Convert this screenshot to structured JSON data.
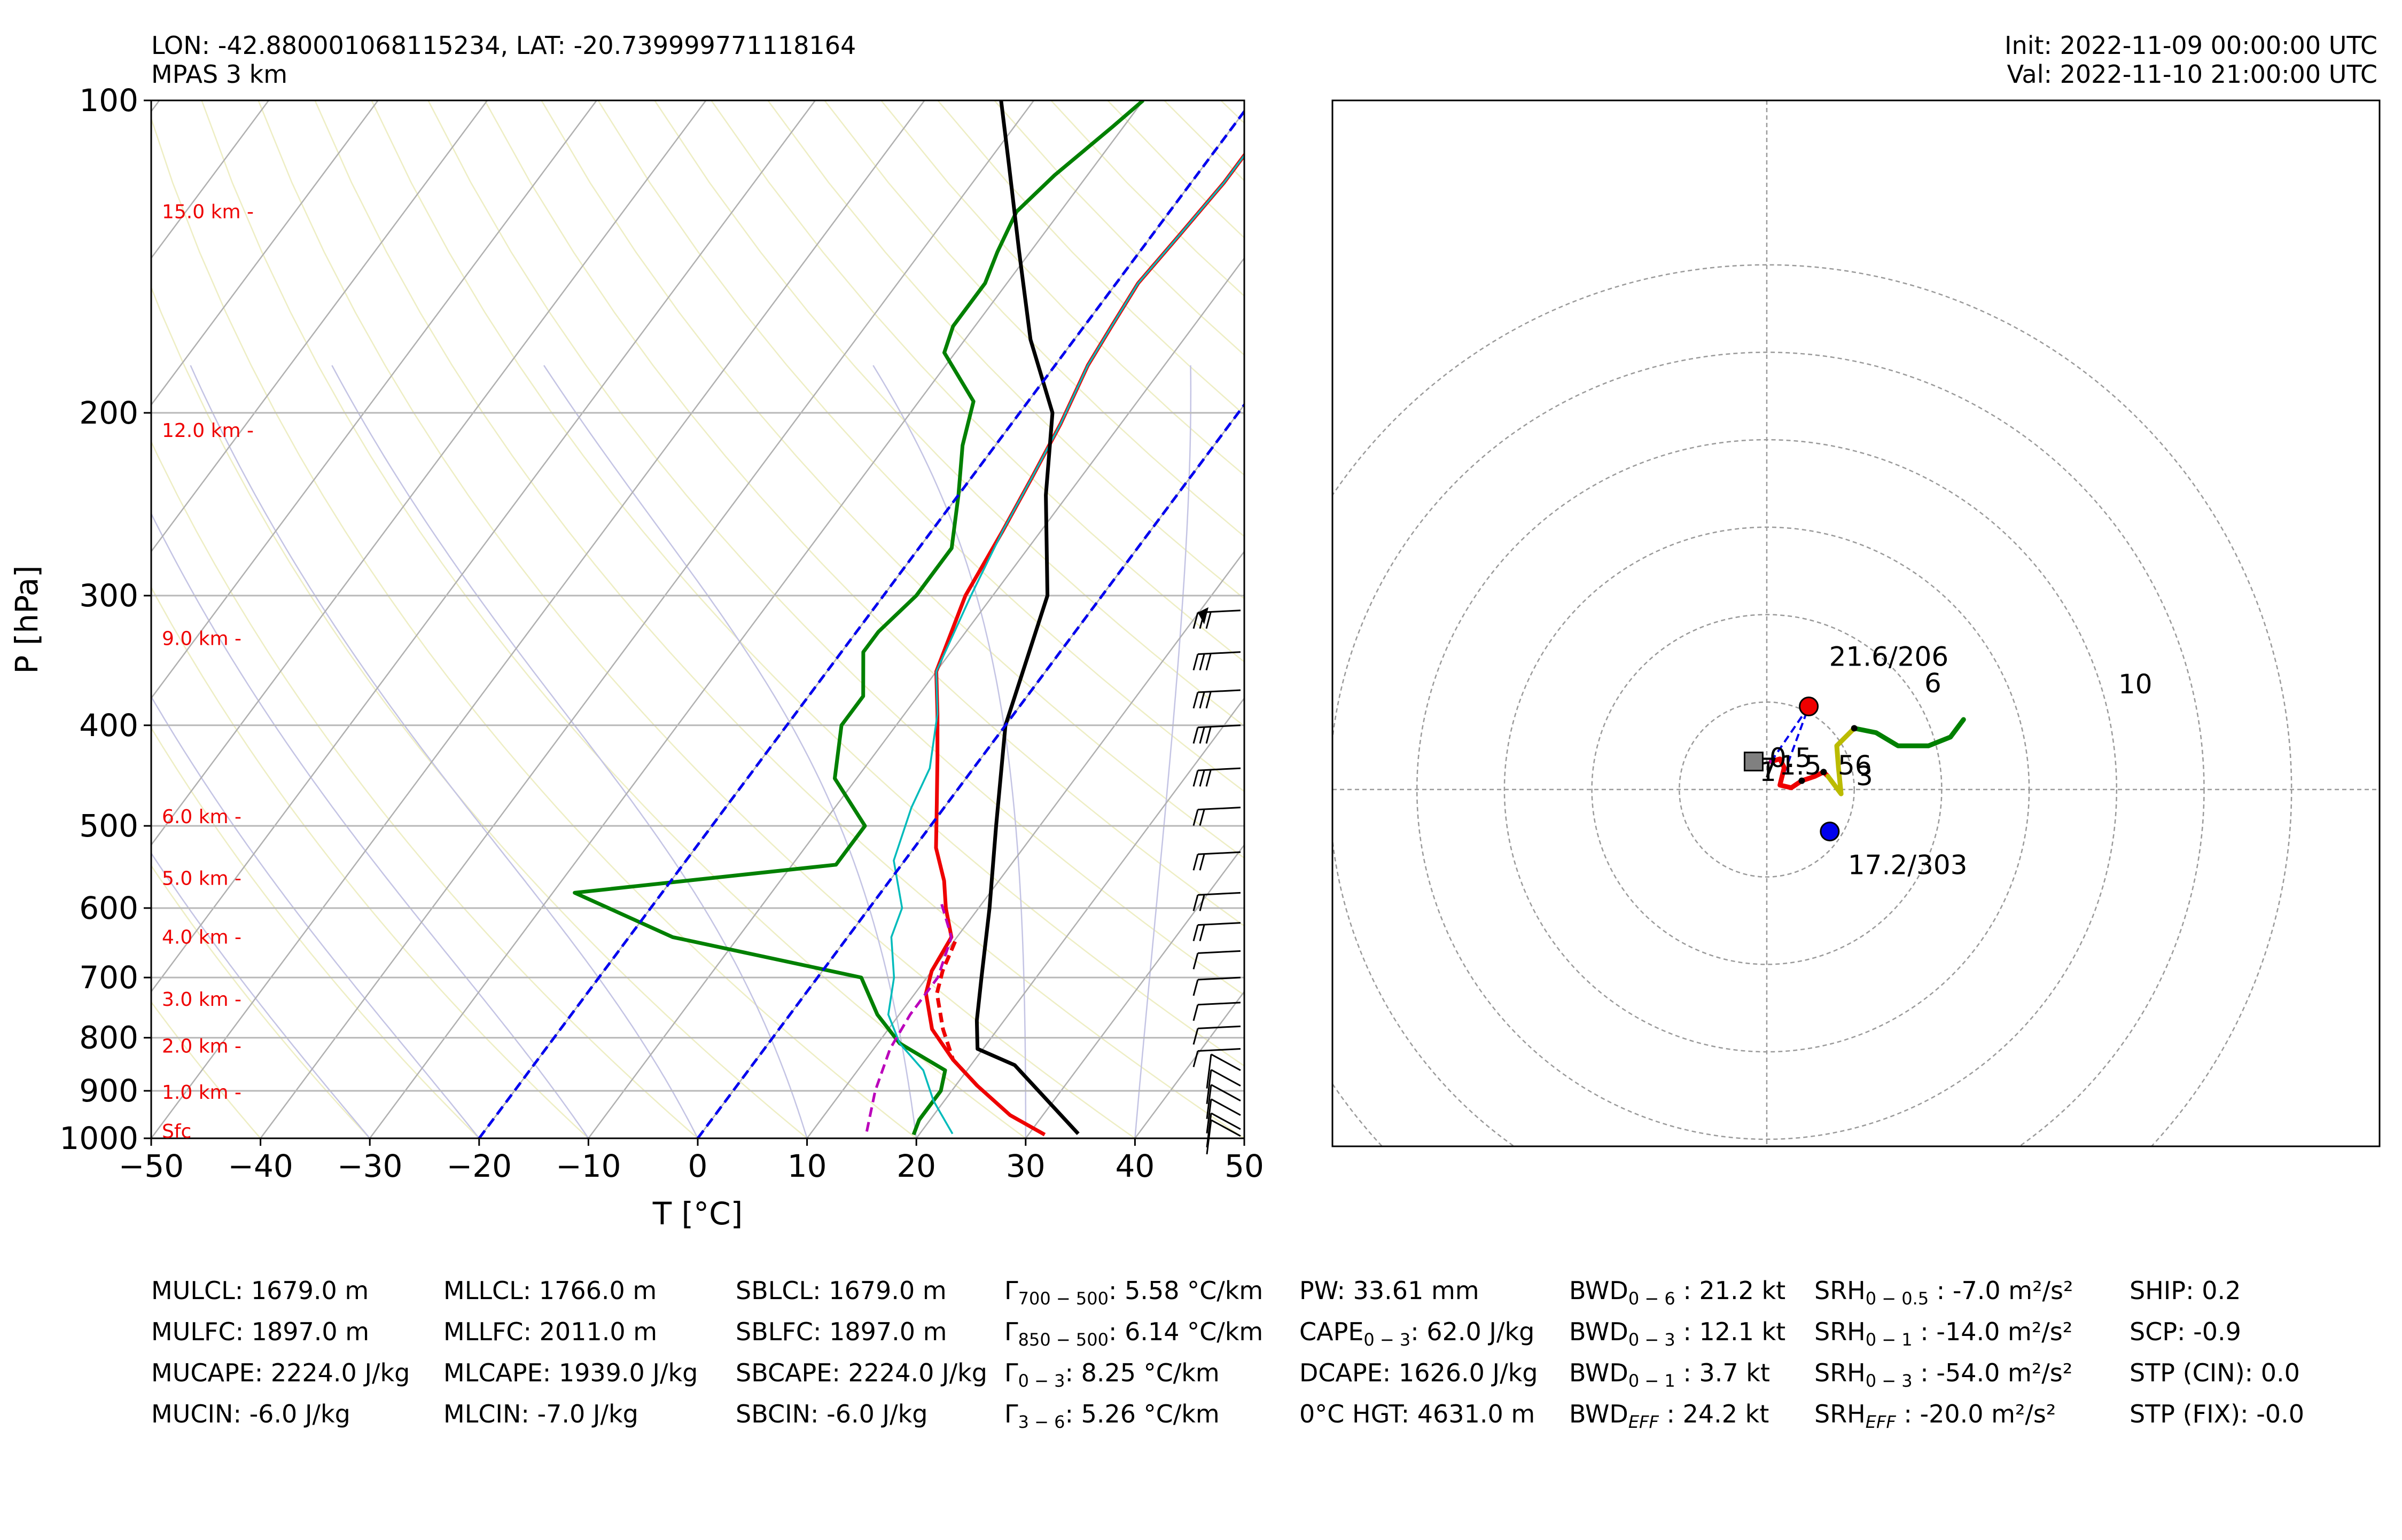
{
  "header": {
    "line1": "LON: -42.880001068115234, LAT: -20.739999771118164",
    "line2": "MPAS 3 km",
    "init": "Init: 2022-11-09 00:00:00 UTC",
    "valid": "Val: 2022-11-10 21:00:00 UTC"
  },
  "colors": {
    "temperature": "#ee0000",
    "dewpoint": "#008000",
    "parcel": "#000000",
    "virtual_temperature": "#00bbbb",
    "wetbulb": "#bb00bb",
    "isotherm_zero": "#0000ee",
    "height_labels": "#ee0000",
    "hodo_0_3km": "#ee0000",
    "hodo_3_6km": "#bbbb00",
    "hodo_6_10km": "#008000"
  },
  "chart_data": [
    {
      "type": "line",
      "subtype": "skew-T log-P sounding",
      "xlabel": "T [°C]",
      "ylabel": "P [hPa]",
      "xlim": [
        -50,
        50
      ],
      "ylim": [
        1000,
        100
      ],
      "y_scale": "log",
      "x_ticks": [
        "−50",
        "−40",
        "−30",
        "−20",
        "−10",
        "0",
        "10",
        "20",
        "30",
        "40",
        "50"
      ],
      "y_ticks": [
        "100",
        "200",
        "300",
        "400",
        "500",
        "600",
        "700",
        "800",
        "900",
        "1000"
      ],
      "height_labels": [
        {
          "label": "15.0 km -",
          "p": 128
        },
        {
          "label": "12.0 km -",
          "p": 208
        },
        {
          "label": "9.0 km -",
          "p": 330
        },
        {
          "label": "6.0 km -",
          "p": 490
        },
        {
          "label": "5.0 km -",
          "p": 562
        },
        {
          "label": "4.0 km -",
          "p": 640
        },
        {
          "label": "3.0 km -",
          "p": 735
        },
        {
          "label": "2.0 km -",
          "p": 815
        },
        {
          "label": "1.0 km -",
          "p": 903
        },
        {
          "label": "Sfc",
          "p": 985
        }
      ],
      "series": [
        {
          "key": "temperature",
          "style": "solid",
          "points": [
            [
              31.5,
              992
            ],
            [
              27,
              950
            ],
            [
              22,
              890
            ],
            [
              18,
              840
            ],
            [
              14,
              785
            ],
            [
              11,
              725
            ],
            [
              10,
              690
            ],
            [
              9.5,
              640
            ],
            [
              7,
              600
            ],
            [
              5,
              565
            ],
            [
              2,
              525
            ],
            [
              -1,
              475
            ],
            [
              -4,
              430
            ],
            [
              -7,
              390
            ],
            [
              -10,
              355
            ],
            [
              -12.5,
              300
            ],
            [
              -13.5,
              260
            ],
            [
              -14.5,
              230
            ],
            [
              -15.5,
              205
            ],
            [
              -17,
              180
            ],
            [
              -17.5,
              165
            ],
            [
              -18,
              150
            ],
            [
              -17.5,
              135
            ],
            [
              -17,
              120
            ],
            [
              -17,
              108
            ],
            [
              -17,
              100
            ]
          ]
        },
        {
          "key": "temperature",
          "style": "dashed",
          "points": [
            [
              22,
              890
            ],
            [
              18,
              840
            ],
            [
              15,
              785
            ],
            [
              12,
              725
            ],
            [
              11,
              690
            ],
            [
              10,
              640
            ]
          ]
        },
        {
          "key": "dewpoint",
          "style": "solid",
          "points": [
            [
              19.5,
              992
            ],
            [
              19,
              960
            ],
            [
              19,
              900
            ],
            [
              18,
              860
            ],
            [
              12,
              810
            ],
            [
              8,
              760
            ],
            [
              4,
              700
            ],
            [
              -16,
              640
            ],
            [
              -28,
              580
            ],
            [
              -6,
              545
            ],
            [
              -6,
              500
            ],
            [
              -12,
              450
            ],
            [
              -15,
              400
            ],
            [
              -15,
              375
            ],
            [
              -18,
              340
            ],
            [
              -18,
              325
            ],
            [
              -17,
              300
            ],
            [
              -17,
              270
            ],
            [
              -20,
              240
            ],
            [
              -23,
              215
            ],
            [
              -25,
              195
            ],
            [
              -31,
              175
            ],
            [
              -32,
              165
            ],
            [
              -32,
              150
            ],
            [
              -33,
              140
            ],
            [
              -34,
              128
            ],
            [
              -33,
              118
            ],
            [
              -31,
              106
            ],
            [
              -30,
              100
            ]
          ]
        },
        {
          "key": "virtual_temperature",
          "style": "solid",
          "points": [
            [
              23,
              990
            ],
            [
              19,
              920
            ],
            [
              16,
              860
            ],
            [
              12,
              810
            ],
            [
              9,
              760
            ],
            [
              7,
              700
            ],
            [
              4,
              640
            ],
            [
              3,
              600
            ],
            [
              -1,
              540
            ],
            [
              -3,
              480
            ],
            [
              -4,
              440
            ],
            [
              -7,
              390
            ],
            [
              -10,
              355
            ],
            [
              -12,
              300
            ],
            [
              -13.5,
              260
            ],
            [
              -14.5,
              230
            ],
            [
              -15.5,
              205
            ],
            [
              -17,
              180
            ],
            [
              -17.5,
              165
            ],
            [
              -18,
              150
            ],
            [
              -17.5,
              135
            ],
            [
              -17,
              120
            ],
            [
              -17,
              108
            ],
            [
              -17,
              100
            ]
          ]
        },
        {
          "key": "parcel",
          "style": "solid",
          "points": [
            [
              34.5,
              990
            ],
            [
              24,
              850
            ],
            [
              19.5,
              820
            ],
            [
              17.5,
              770
            ],
            [
              15,
              700
            ],
            [
              11,
              600
            ],
            [
              6,
              500
            ],
            [
              0,
              400
            ],
            [
              -5,
              300
            ],
            [
              -12,
              240
            ],
            [
              -17,
              200
            ],
            [
              -24,
              170
            ],
            [
              -31,
              140
            ],
            [
              -38,
              115
            ],
            [
              -43,
              100
            ]
          ]
        },
        {
          "key": "wetbulb",
          "style": "dashed",
          "points": [
            [
              15,
              985
            ],
            [
              13,
              900
            ],
            [
              11.5,
              820
            ],
            [
              11,
              760
            ],
            [
              11,
              700
            ],
            [
              9.5,
              640
            ],
            [
              6,
              590
            ]
          ]
        },
        {
          "key": "isotherm_zero",
          "style": "dashed",
          "points": [
            [
              0,
              1000
            ],
            [
              0,
              100
            ]
          ]
        },
        {
          "key": "isotherm_zero",
          "style": "dashed",
          "points": [
            [
              -20,
              1000
            ],
            [
              -20,
              100
            ]
          ]
        }
      ]
    },
    {
      "type": "scatter",
      "subtype": "hodograph",
      "rings_kt": [
        10,
        20,
        30,
        40,
        50,
        60
      ],
      "series": [
        {
          "key": "hodo_0_3km",
          "points": [
            [
              0.5,
              3.2
            ],
            [
              1.5,
              3.5
            ],
            [
              2,
              2.5
            ],
            [
              1.5,
              0.5
            ],
            [
              2.8,
              0.2
            ],
            [
              4,
              1
            ],
            [
              5.5,
              1.5
            ],
            [
              6.5,
              2
            ],
            [
              7,
              1.5
            ]
          ]
        },
        {
          "key": "hodo_3_6km",
          "points": [
            [
              7,
              1.5
            ],
            [
              8.5,
              -0.5
            ],
            [
              8.2,
              2.5
            ],
            [
              8,
              5
            ],
            [
              9,
              6
            ],
            [
              10,
              7
            ]
          ]
        },
        {
          "key": "hodo_6_10km",
          "points": [
            [
              10,
              7
            ],
            [
              12.5,
              6.5
            ],
            [
              15,
              5
            ],
            [
              18.5,
              5
            ],
            [
              21,
              6
            ],
            [
              22.5,
              8
            ]
          ]
        }
      ],
      "markers": [
        {
          "name": "storm-motion-right",
          "label": "21.6/206",
          "u": 4.8,
          "v": 9.5,
          "color": "#ee0000"
        },
        {
          "name": "storm-motion-left",
          "label": "17.2/303",
          "u": 7.2,
          "v": -4.8,
          "color": "#0000ee"
        },
        {
          "name": "mean-wind",
          "u": -1.5,
          "v": 3.2,
          "color": "#808080"
        }
      ],
      "height_labels": [
        {
          "label": "0.5",
          "u": 1.0,
          "v": 1.5
        },
        {
          "label": "1",
          "u": 0.2,
          "v": 0.8
        },
        {
          "label": "1.5",
          "u": 2.8,
          "v": 0.9
        },
        {
          "label": "7",
          "u": -0.2,
          "v": 0.9
        },
        {
          "label": "56",
          "u": 4.0,
          "v": 0.9
        },
        {
          "label": "3",
          "u": 5.5,
          "v": 0.5
        },
        {
          "label": "6",
          "u": 9.5,
          "v": 6.0
        },
        {
          "label": "10",
          "u": 20.2,
          "v": 6.0
        }
      ]
    }
  ],
  "params": [
    [
      "MULCL: 1679.0 m",
      "MULFC: 1897.0 m",
      "MUCAPE: 2224.0 J/kg",
      "MUCIN: -6.0 J/kg"
    ],
    [
      "MLLCL: 1766.0 m",
      "MLLFC: 2011.0 m",
      "MLCAPE: 1939.0 J/kg",
      "MLCIN: -7.0 J/kg"
    ],
    [
      "SBLCL: 1679.0 m",
      "SBLFC: 1897.0 m",
      "SBCAPE: 2224.0 J/kg",
      "SBCIN: -6.0 J/kg"
    ],
    [
      {
        "base": "Γ",
        "sub": "700 − 500",
        "rest": ": 5.58 °C/km"
      },
      {
        "base": "Γ",
        "sub": "850 − 500",
        "rest": ": 6.14 °C/km"
      },
      {
        "base": "Γ",
        "sub": "0 − 3",
        "rest": ": 8.25 °C/km"
      },
      {
        "base": "Γ",
        "sub": "3 − 6",
        "rest": ": 5.26 °C/km"
      }
    ],
    [
      {
        "base": "PW: 33.61 mm",
        "sub": "",
        "rest": ""
      },
      {
        "base": "CAPE",
        "sub": "0 − 3",
        "rest": ": 62.0 J/kg"
      },
      {
        "base": "DCAPE: 1626.0 J/kg",
        "sub": "",
        "rest": ""
      },
      {
        "base": "0°C HGT: 4631.0 m",
        "sub": "",
        "rest": ""
      }
    ],
    [
      {
        "base": "BWD",
        "sub": "0 − 6",
        "rest": " : 21.2 kt"
      },
      {
        "base": "BWD",
        "sub": "0 − 3",
        "rest": " : 12.1 kt"
      },
      {
        "base": "BWD",
        "sub": "0 − 1",
        "rest": " : 3.7 kt"
      },
      {
        "base": "BWD",
        "sub": "EFF",
        "rest": " : 24.2 kt"
      }
    ],
    [
      {
        "base": "SRH",
        "sub": "0 − 0.5",
        "rest": " : -7.0 m²/s²"
      },
      {
        "base": "SRH",
        "sub": "0 − 1",
        "rest": " : -14.0 m²/s²"
      },
      {
        "base": "SRH",
        "sub": "0 − 3",
        "rest": " : -54.0 m²/s²"
      },
      {
        "base": "SRH",
        "sub": "EFF",
        "rest": " : -20.0 m²/s²"
      }
    ],
    [
      "SHIP: 0.2",
      "SCP: -0.9",
      "STP (CIN): 0.0",
      "STP (FIX): -0.0"
    ]
  ]
}
